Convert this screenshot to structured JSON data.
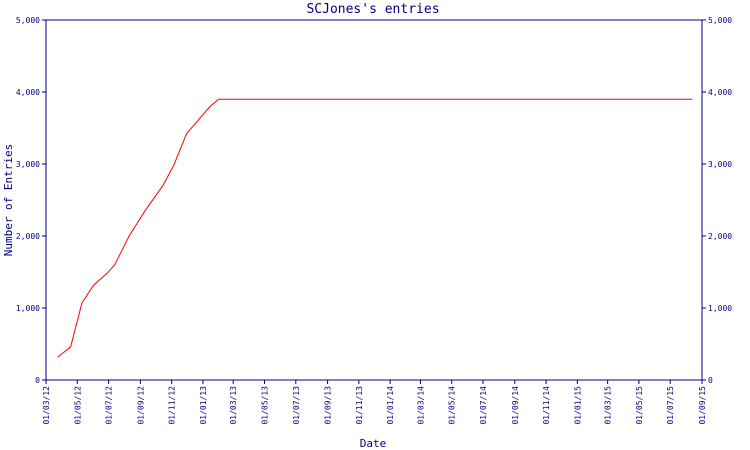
{
  "chart_data": {
    "type": "line",
    "title": "SCJones's entries",
    "xlabel": "Date",
    "ylabel": "Number of Entries",
    "ylim": [
      0,
      5000
    ],
    "yticks": [
      0,
      1000,
      2000,
      3000,
      4000,
      5000
    ],
    "ytick_labels": [
      "0",
      "1,000",
      "2,000",
      "3,000",
      "4,000",
      "5,000"
    ],
    "xlim": [
      "2012-03-01",
      "2015-09-01"
    ],
    "xtick_labels": [
      "01/03/12",
      "01/05/12",
      "01/07/12",
      "01/09/12",
      "01/11/12",
      "01/01/13",
      "01/03/13",
      "01/05/13",
      "01/07/13",
      "01/09/13",
      "01/11/13",
      "01/01/14",
      "01/03/14",
      "01/05/14",
      "01/07/14",
      "01/09/14",
      "01/11/14",
      "01/01/15",
      "01/03/15",
      "01/05/15",
      "01/07/15",
      "01/09/15"
    ],
    "xtick_dates": [
      "2012-03-01",
      "2012-05-01",
      "2012-07-01",
      "2012-09-01",
      "2012-11-01",
      "2013-01-01",
      "2013-03-01",
      "2013-05-01",
      "2013-07-01",
      "2013-09-01",
      "2013-11-01",
      "2014-01-01",
      "2014-03-01",
      "2014-05-01",
      "2014-07-01",
      "2014-09-01",
      "2014-11-01",
      "2015-01-01",
      "2015-03-01",
      "2015-05-01",
      "2015-07-01",
      "2015-09-01"
    ],
    "series": [
      {
        "color": "#ff0000",
        "x": [
          "2012-03-24",
          "2012-04-18",
          "2012-05-10",
          "2012-06-02",
          "2012-06-28",
          "2012-07-13",
          "2012-08-10",
          "2012-09-10",
          "2012-10-15",
          "2012-11-05",
          "2012-11-30",
          "2013-01-15",
          "2013-02-01",
          "2015-08-13"
        ],
        "y": [
          320,
          460,
          1070,
          1320,
          1480,
          1600,
          2000,
          2350,
          2700,
          2980,
          3420,
          3800,
          3900,
          3900
        ]
      }
    ],
    "grid": false
  }
}
